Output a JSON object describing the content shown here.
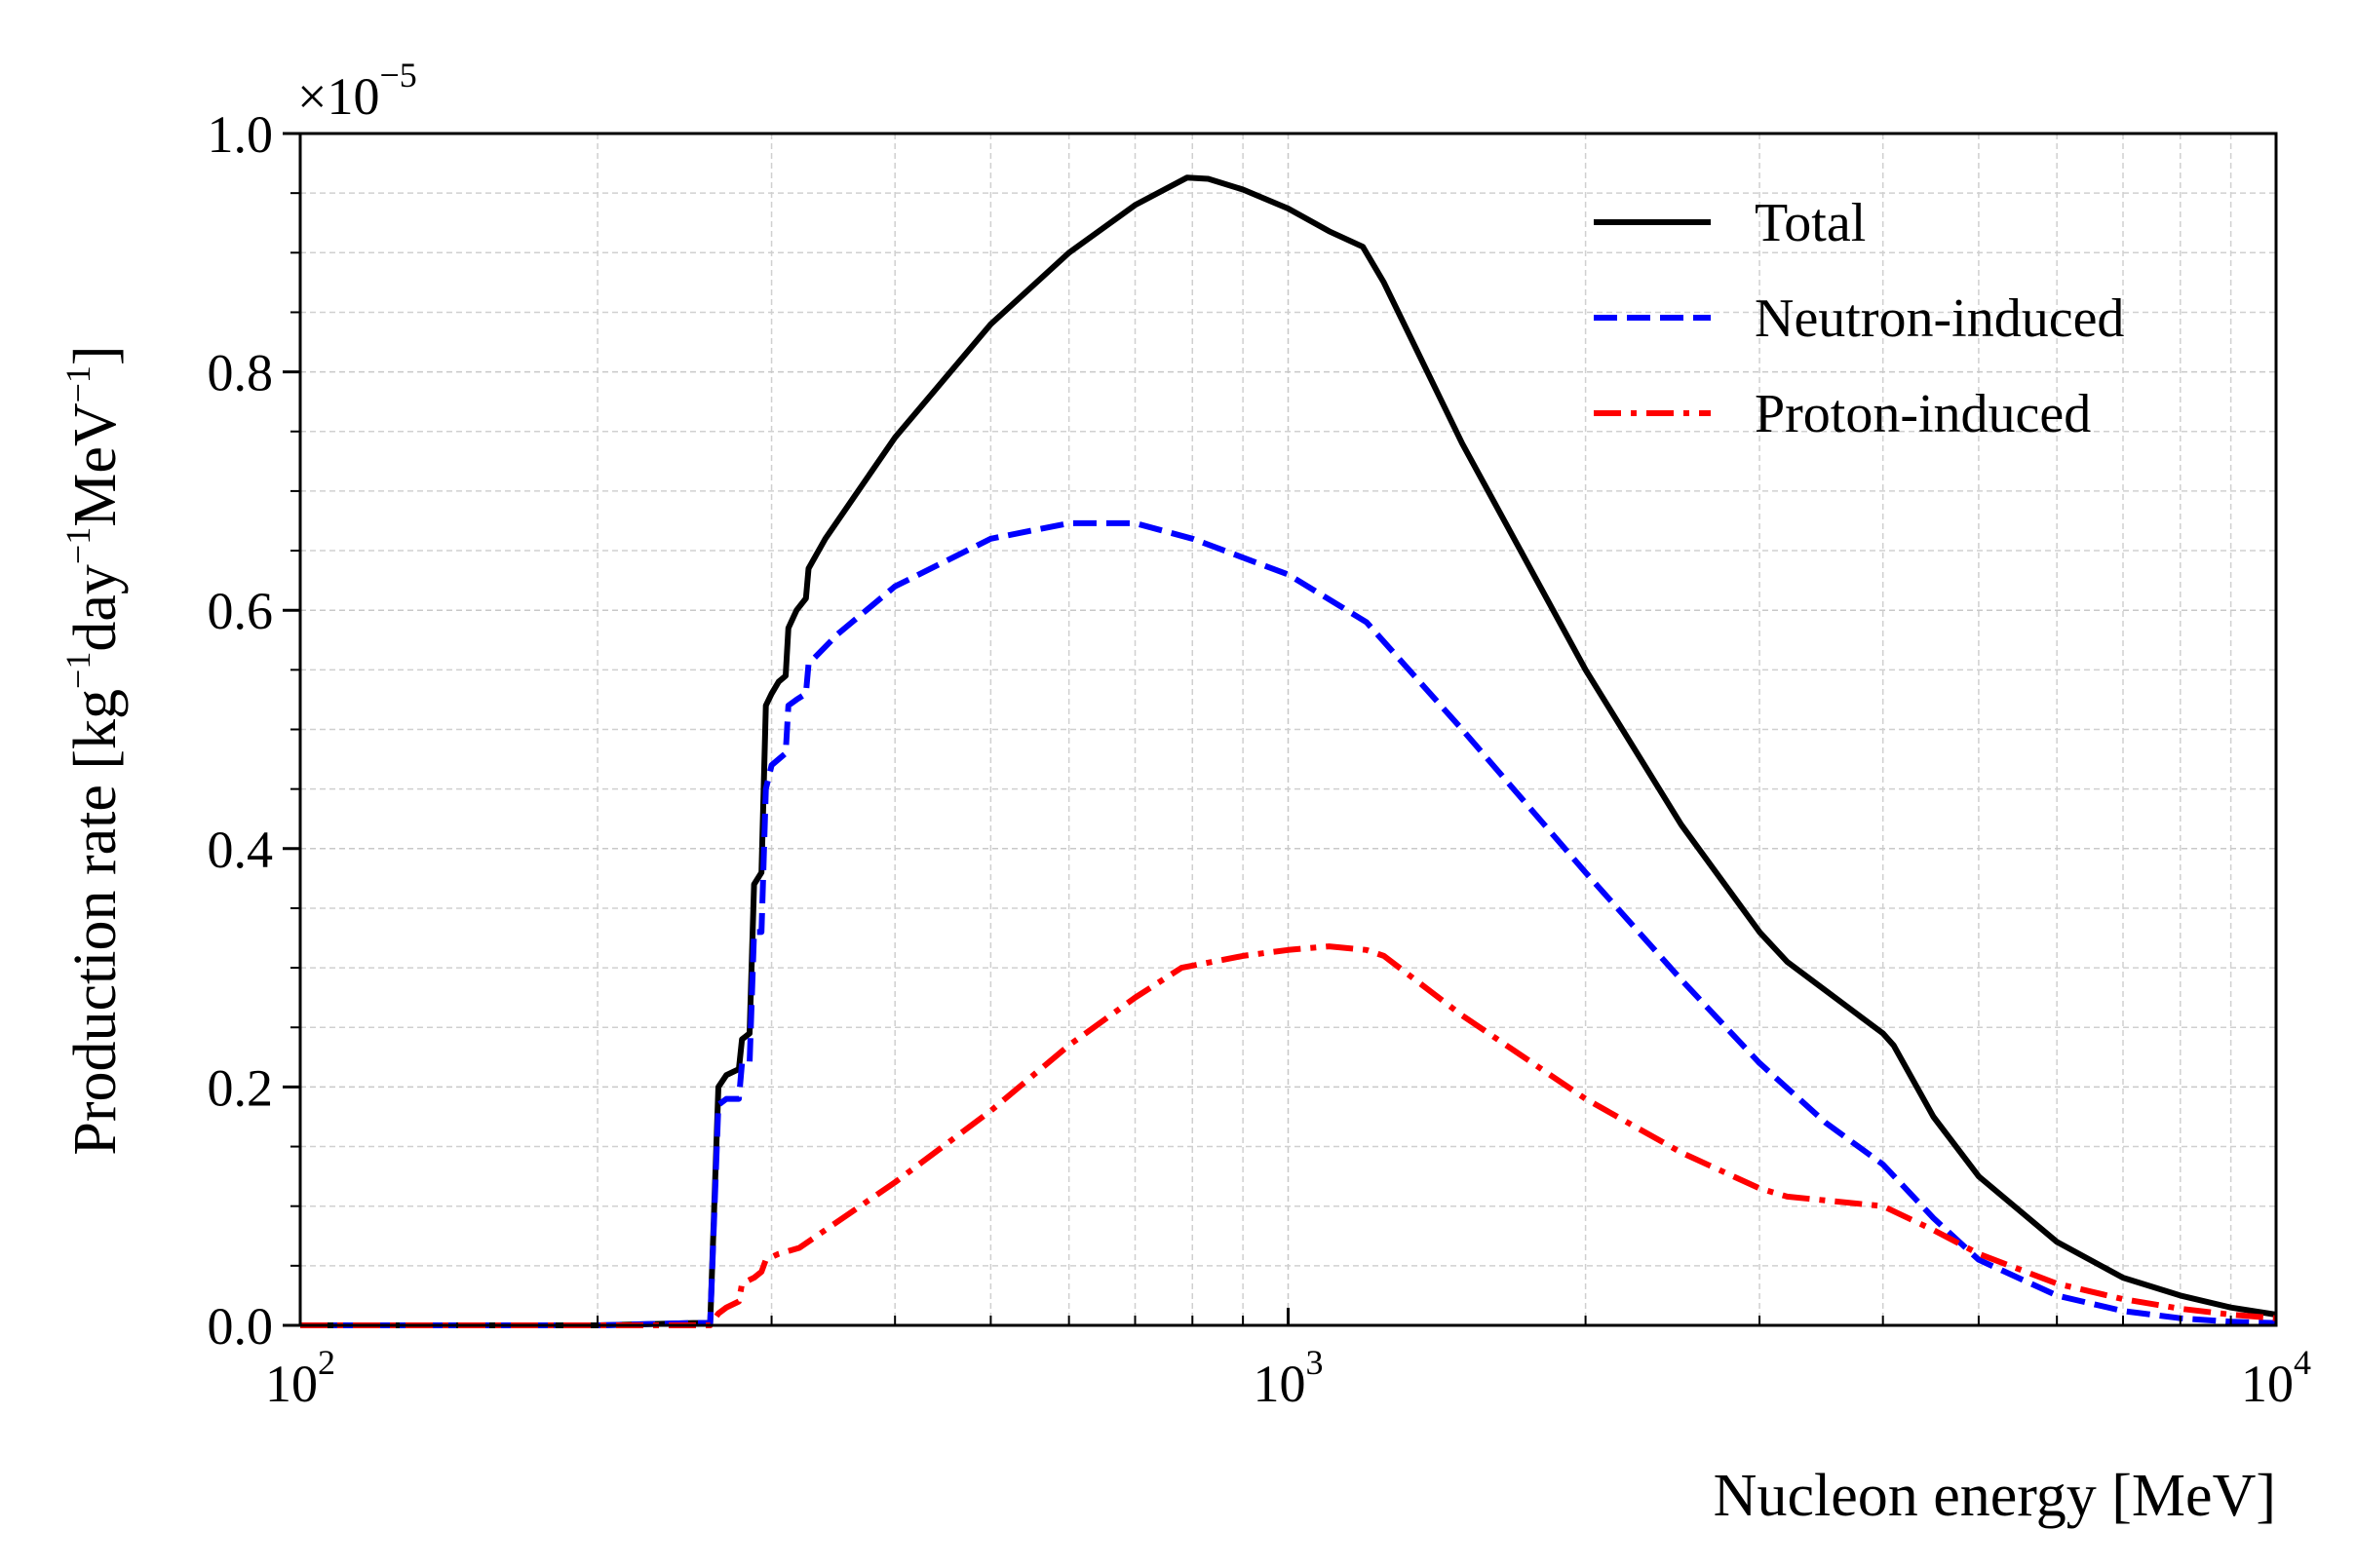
{
  "chart_data": {
    "type": "line",
    "xscale": "log",
    "xlim": [
      100,
      10000
    ],
    "ylim": [
      0,
      1.0
    ],
    "y_multiplier": {
      "base": "×10",
      "exponent": "−5"
    },
    "grid": true,
    "legend_position": "top-right",
    "xlabel": "Nucleon energy [MeV]",
    "ylabel": {
      "prefix": "Production rate [kg",
      "exp1": "−1",
      "mid": "day",
      "exp2": "−1",
      "mid2": "MeV",
      "exp3": "−1",
      "suffix": "]"
    },
    "x_ticks": [
      {
        "value": 100,
        "base": "10",
        "exp": "2"
      },
      {
        "value": 1000,
        "base": "10",
        "exp": "3"
      },
      {
        "value": 10000,
        "base": "10",
        "exp": "4"
      }
    ],
    "y_ticks": [
      {
        "value": 0.0,
        "label": "0.0"
      },
      {
        "value": 0.2,
        "label": "0.2"
      },
      {
        "value": 0.4,
        "label": "0.4"
      },
      {
        "value": 0.6,
        "label": "0.6"
      },
      {
        "value": 0.8,
        "label": "0.8"
      },
      {
        "value": 1.0,
        "label": "1.0"
      }
    ],
    "series": [
      {
        "name": "Total",
        "color": "#000000",
        "style": "solid",
        "points": [
          [
            100,
            0
          ],
          [
            200,
            0
          ],
          [
            250,
            0.002
          ],
          [
            260,
            0.002
          ],
          [
            265,
            0.2
          ],
          [
            270,
            0.21
          ],
          [
            278,
            0.215
          ],
          [
            280,
            0.24
          ],
          [
            285,
            0.245
          ],
          [
            288,
            0.37
          ],
          [
            293,
            0.38
          ],
          [
            296,
            0.52
          ],
          [
            300,
            0.53
          ],
          [
            305,
            0.54
          ],
          [
            310,
            0.545
          ],
          [
            312,
            0.585
          ],
          [
            318,
            0.6
          ],
          [
            325,
            0.61
          ],
          [
            327,
            0.635
          ],
          [
            340,
            0.66
          ],
          [
            400,
            0.745
          ],
          [
            500,
            0.84
          ],
          [
            600,
            0.9
          ],
          [
            700,
            0.94
          ],
          [
            790,
            0.963
          ],
          [
            830,
            0.962
          ],
          [
            900,
            0.953
          ],
          [
            1000,
            0.937
          ],
          [
            1100,
            0.918
          ],
          [
            1190,
            0.905
          ],
          [
            1250,
            0.875
          ],
          [
            1500,
            0.74
          ],
          [
            2000,
            0.55
          ],
          [
            2500,
            0.42
          ],
          [
            3000,
            0.33
          ],
          [
            3200,
            0.305
          ],
          [
            4000,
            0.245
          ],
          [
            4100,
            0.235
          ],
          [
            4500,
            0.175
          ],
          [
            5000,
            0.125
          ],
          [
            6000,
            0.07
          ],
          [
            7000,
            0.04
          ],
          [
            8000,
            0.025
          ],
          [
            9000,
            0.015
          ],
          [
            10000,
            0.009
          ]
        ]
      },
      {
        "name": "Neutron-induced",
        "color": "#0000ff",
        "style": "dashed",
        "points": [
          [
            100,
            0
          ],
          [
            200,
            0
          ],
          [
            250,
            0.002
          ],
          [
            260,
            0.002
          ],
          [
            265,
            0.185
          ],
          [
            270,
            0.19
          ],
          [
            278,
            0.19
          ],
          [
            280,
            0.22
          ],
          [
            285,
            0.22
          ],
          [
            288,
            0.33
          ],
          [
            293,
            0.33
          ],
          [
            296,
            0.45
          ],
          [
            300,
            0.47
          ],
          [
            305,
            0.475
          ],
          [
            310,
            0.48
          ],
          [
            312,
            0.52
          ],
          [
            318,
            0.525
          ],
          [
            325,
            0.53
          ],
          [
            327,
            0.555
          ],
          [
            350,
            0.58
          ],
          [
            400,
            0.62
          ],
          [
            500,
            0.66
          ],
          [
            600,
            0.673
          ],
          [
            700,
            0.673
          ],
          [
            800,
            0.66
          ],
          [
            1000,
            0.63
          ],
          [
            1200,
            0.59
          ],
          [
            1500,
            0.5
          ],
          [
            2000,
            0.38
          ],
          [
            2500,
            0.29
          ],
          [
            3000,
            0.22
          ],
          [
            3500,
            0.17
          ],
          [
            4000,
            0.135
          ],
          [
            4500,
            0.09
          ],
          [
            5000,
            0.055
          ],
          [
            6000,
            0.025
          ],
          [
            7000,
            0.012
          ],
          [
            8000,
            0.006
          ],
          [
            9000,
            0.003
          ],
          [
            10000,
            0.002
          ]
        ]
      },
      {
        "name": "Proton-induced",
        "color": "#ff0000",
        "style": "dashdot",
        "points": [
          [
            100,
            0
          ],
          [
            200,
            0
          ],
          [
            250,
            0
          ],
          [
            260,
            0
          ],
          [
            265,
            0.01
          ],
          [
            270,
            0.015
          ],
          [
            278,
            0.02
          ],
          [
            280,
            0.035
          ],
          [
            288,
            0.04
          ],
          [
            293,
            0.045
          ],
          [
            296,
            0.055
          ],
          [
            305,
            0.06
          ],
          [
            320,
            0.065
          ],
          [
            400,
            0.12
          ],
          [
            500,
            0.18
          ],
          [
            600,
            0.235
          ],
          [
            700,
            0.275
          ],
          [
            780,
            0.3
          ],
          [
            900,
            0.31
          ],
          [
            1000,
            0.315
          ],
          [
            1100,
            0.318
          ],
          [
            1200,
            0.315
          ],
          [
            1250,
            0.31
          ],
          [
            1500,
            0.26
          ],
          [
            2000,
            0.19
          ],
          [
            2500,
            0.145
          ],
          [
            3000,
            0.115
          ],
          [
            3200,
            0.108
          ],
          [
            4000,
            0.1
          ],
          [
            4500,
            0.08
          ],
          [
            5000,
            0.06
          ],
          [
            6000,
            0.035
          ],
          [
            7000,
            0.022
          ],
          [
            8000,
            0.014
          ],
          [
            9000,
            0.009
          ],
          [
            10000,
            0.006
          ]
        ]
      }
    ]
  }
}
